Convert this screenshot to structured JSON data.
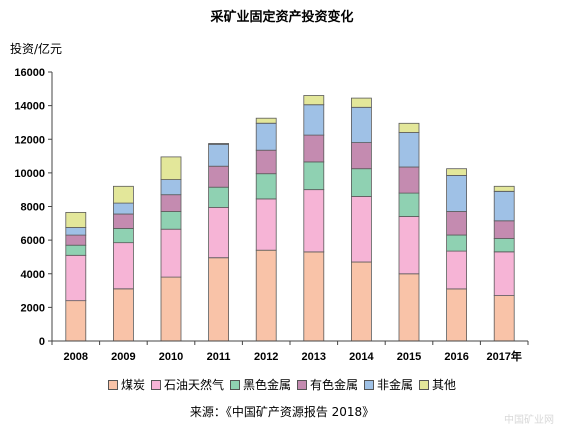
{
  "chart_data": {
    "type": "bar",
    "stacked": true,
    "title": "采矿业固定资产投资变化",
    "ylabel": "投资/亿元",
    "xlabel": "",
    "categories": [
      "2008",
      "2009",
      "2010",
      "2011",
      "2012",
      "2013",
      "2014",
      "2015",
      "2016",
      "2017年"
    ],
    "ylim": [
      0,
      16000
    ],
    "yticks": [
      0,
      2000,
      4000,
      6000,
      8000,
      10000,
      12000,
      14000,
      16000
    ],
    "grid": false,
    "legend_position": "bottom",
    "series": [
      {
        "name": "煤炭",
        "color": "#f9c3a8",
        "values": [
          2400,
          3100,
          3800,
          4950,
          5400,
          5300,
          4700,
          4000,
          3100,
          2700
        ]
      },
      {
        "name": "石油天然气",
        "color": "#f6b4d6",
        "values": [
          2700,
          2750,
          2850,
          3000,
          3050,
          3700,
          3900,
          3400,
          2250,
          2600
        ]
      },
      {
        "name": "黑色金属",
        "color": "#8fd1b2",
        "values": [
          600,
          850,
          1050,
          1200,
          1500,
          1650,
          1650,
          1400,
          950,
          800
        ]
      },
      {
        "name": "有色金属",
        "color": "#c48bb0",
        "values": [
          600,
          850,
          1000,
          1250,
          1400,
          1600,
          1550,
          1550,
          1400,
          1050
        ]
      },
      {
        "name": "非金属",
        "color": "#9fc1e6",
        "values": [
          450,
          650,
          900,
          1300,
          1600,
          1800,
          2100,
          2050,
          2150,
          1750
        ]
      },
      {
        "name": "其他",
        "color": "#e3e79a",
        "values": [
          900,
          1000,
          1350,
          50,
          300,
          550,
          550,
          550,
          400,
          300
        ]
      }
    ]
  },
  "source": "来源：《中国矿产资源报告 2018》",
  "watermark": "中国矿业网"
}
